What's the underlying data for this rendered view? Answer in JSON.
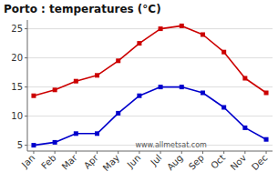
{
  "chart_data": {
    "type": "line",
    "title": "Porto : temperatures (°C)",
    "categories": [
      "Jan",
      "Feb",
      "Mar",
      "Apr",
      "May",
      "Jun",
      "Jul",
      "Aug",
      "Sep",
      "Oct",
      "Nov",
      "Dec"
    ],
    "series": [
      {
        "color": "#cc0000",
        "marker": "square",
        "line_style": "solid",
        "values": [
          13.5,
          14.5,
          16.0,
          17.0,
          19.5,
          22.5,
          25.0,
          25.5,
          24.0,
          21.0,
          16.5,
          14.0
        ]
      },
      {
        "color": "#0000cc",
        "marker": "square",
        "line_style": "solid",
        "values": [
          5.0,
          5.5,
          7.0,
          7.0,
          10.5,
          13.5,
          15.0,
          15.0,
          14.0,
          11.5,
          8.0,
          6.0
        ]
      }
    ],
    "annotations": [
      "www.allmetsat.com"
    ],
    "ylim": [
      4,
      26.5
    ],
    "yticks": [
      5,
      10,
      15,
      20,
      25
    ],
    "grid": true
  }
}
